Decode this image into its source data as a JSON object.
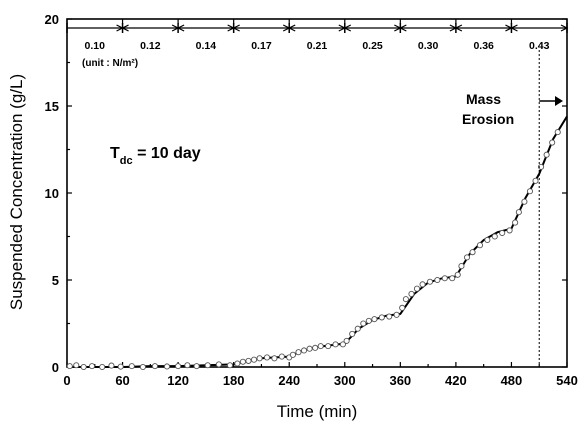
{
  "chart_data": {
    "type": "line",
    "xlabel": "Time (min)",
    "ylabel": "Suspended Concentration (g/L)",
    "xlim": [
      0,
      540
    ],
    "ylim": [
      0,
      20
    ],
    "xticks": [
      0,
      60,
      120,
      180,
      240,
      300,
      360,
      420,
      480,
      540
    ],
    "yticks": [
      0,
      5,
      10,
      15,
      20
    ],
    "grid": false,
    "shear_stress_bands": {
      "boundaries": [
        0,
        60,
        120,
        180,
        240,
        300,
        360,
        420,
        480,
        540
      ],
      "labels": [
        "0.10",
        "0.12",
        "0.14",
        "0.17",
        "0.21",
        "0.25",
        "0.30",
        "0.36",
        "0.43"
      ],
      "unit_label": "(unit : N/m²)"
    },
    "annotations": {
      "condition": "T",
      "condition_sub": "dc",
      "condition_value": " = 10 day",
      "mass_erosion_line1": "Mass",
      "mass_erosion_line2": "Erosion",
      "mass_erosion_x": 510
    },
    "series": [
      {
        "values_x": [
          0,
          30,
          60,
          90,
          120,
          150,
          180,
          195,
          210,
          225,
          240,
          255,
          270,
          285,
          300,
          315,
          330,
          345,
          360,
          375,
          390,
          405,
          420,
          435,
          450,
          465,
          480,
          495,
          510,
          525,
          540
        ],
        "values_y": [
          0.0,
          0.0,
          0.0,
          0.05,
          0.05,
          0.1,
          0.15,
          0.35,
          0.5,
          0.55,
          0.6,
          0.95,
          1.15,
          1.25,
          1.35,
          2.2,
          2.7,
          2.95,
          3.05,
          4.2,
          4.85,
          5.1,
          5.2,
          6.5,
          7.3,
          7.75,
          7.95,
          9.7,
          11.1,
          13.1,
          14.4
        ]
      }
    ],
    "observed": {
      "x": [
        3,
        10,
        18,
        27,
        38,
        48,
        58,
        70,
        82,
        95,
        108,
        120,
        130,
        140,
        152,
        164,
        176,
        184,
        190,
        196,
        202,
        208,
        216,
        224,
        232,
        240,
        244,
        250,
        256,
        262,
        268,
        274,
        282,
        290,
        298,
        302,
        308,
        314,
        320,
        326,
        332,
        340,
        348,
        356,
        362,
        366,
        372,
        378,
        384,
        392,
        400,
        408,
        416,
        422,
        426,
        432,
        438,
        446,
        454,
        462,
        470,
        478,
        484,
        488,
        494,
        500,
        506,
        512,
        518,
        524,
        530
      ],
      "y": [
        0.05,
        0.1,
        0.0,
        0.05,
        0.0,
        0.08,
        0.02,
        0.05,
        0.0,
        0.05,
        0.03,
        0.05,
        0.1,
        0.05,
        0.1,
        0.15,
        0.1,
        0.2,
        0.3,
        0.35,
        0.42,
        0.5,
        0.55,
        0.5,
        0.6,
        0.55,
        0.7,
        0.85,
        0.95,
        1.05,
        1.1,
        1.2,
        1.2,
        1.3,
        1.3,
        1.5,
        1.9,
        2.2,
        2.5,
        2.65,
        2.75,
        2.85,
        2.9,
        3.0,
        3.4,
        3.9,
        4.2,
        4.5,
        4.75,
        4.9,
        5.0,
        5.1,
        5.1,
        5.3,
        5.8,
        6.3,
        6.6,
        7.0,
        7.3,
        7.5,
        7.7,
        7.85,
        8.3,
        8.9,
        9.5,
        10.1,
        10.7,
        11.5,
        12.2,
        12.9,
        13.5
      ]
    }
  }
}
